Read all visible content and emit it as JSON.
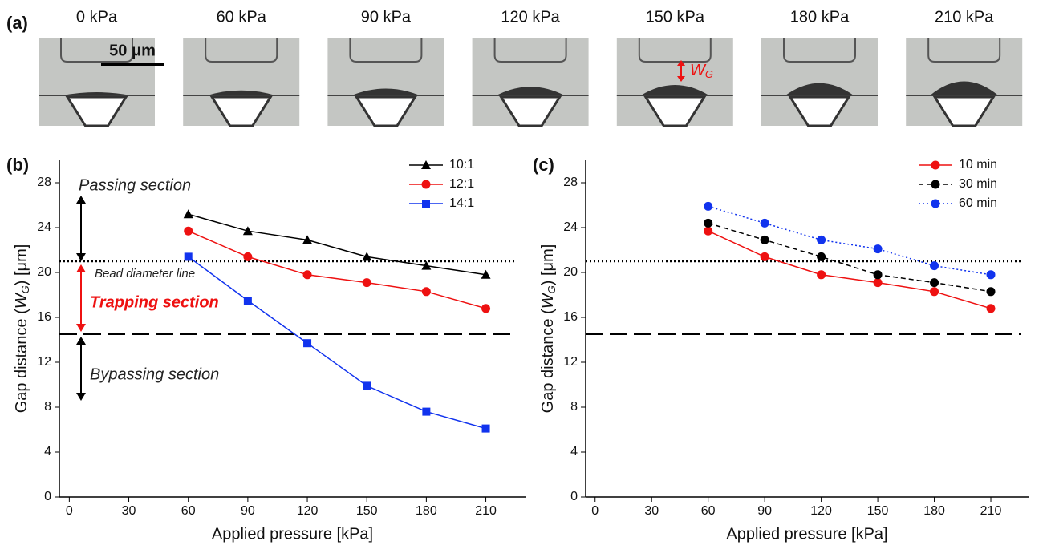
{
  "panel_a": {
    "label": "(a)",
    "pressures": [
      "0 kPa",
      "60 kPa",
      "90 kPa",
      "120 kPa",
      "150 kPa",
      "180 kPa",
      "210 kPa"
    ],
    "scale_bar": "50 μm",
    "annotation": {
      "main": "W",
      "sub": "G"
    }
  },
  "chart_data": [
    {
      "type": "line",
      "panel_label": "(b)",
      "xlabel": "Applied pressure [kPa]",
      "ylabel": {
        "before": "Gap distance (",
        "italic": "W",
        "sub": "G",
        "after": ") [μm]"
      },
      "x": [
        60,
        90,
        120,
        150,
        180,
        210
      ],
      "xlim": [
        -5,
        230
      ],
      "xticks": [
        0,
        30,
        60,
        90,
        120,
        150,
        180,
        210
      ],
      "ylim": [
        0,
        30
      ],
      "yticks": [
        0,
        4,
        8,
        12,
        16,
        20,
        24,
        28
      ],
      "hlines": [
        {
          "value": 21,
          "style": "dotted"
        },
        {
          "value": 14.5,
          "style": "dashed"
        }
      ],
      "annotations": [
        "Passing section",
        "Bead diameter line",
        "Trapping section",
        "Bypassing section"
      ],
      "series": [
        {
          "name": "10:1",
          "color": "#000000",
          "marker": "triangle",
          "dash": "solid",
          "values": [
            25.2,
            23.7,
            22.9,
            21.4,
            20.6,
            19.8
          ]
        },
        {
          "name": "12:1",
          "color": "#ee1111",
          "marker": "circle",
          "dash": "solid",
          "values": [
            23.7,
            21.4,
            19.8,
            19.1,
            18.3,
            16.8
          ]
        },
        {
          "name": "14:1",
          "color": "#1133ee",
          "marker": "square",
          "dash": "solid",
          "values": [
            21.4,
            17.5,
            13.7,
            9.9,
            7.6,
            6.1
          ]
        }
      ]
    },
    {
      "type": "line",
      "panel_label": "(c)",
      "xlabel": "Applied pressure [kPa]",
      "ylabel": {
        "before": "Gap distance (",
        "italic": "W",
        "sub": "G",
        "after": ") [μm]"
      },
      "x": [
        60,
        90,
        120,
        150,
        180,
        210
      ],
      "xlim": [
        -5,
        230
      ],
      "xticks": [
        0,
        30,
        60,
        90,
        120,
        150,
        180,
        210
      ],
      "ylim": [
        0,
        30
      ],
      "yticks": [
        0,
        4,
        8,
        12,
        16,
        20,
        24,
        28
      ],
      "hlines": [
        {
          "value": 21,
          "style": "dotted"
        },
        {
          "value": 14.5,
          "style": "dashed"
        }
      ],
      "series": [
        {
          "name": "10 min",
          "color": "#ee1111",
          "marker": "circle",
          "dash": "solid",
          "values": [
            23.7,
            21.4,
            19.8,
            19.1,
            18.3,
            16.8
          ]
        },
        {
          "name": "30 min",
          "color": "#000000",
          "marker": "circle",
          "dash": "dashed",
          "values": [
            24.4,
            22.9,
            21.4,
            19.8,
            19.1,
            18.3
          ]
        },
        {
          "name": "60 min",
          "color": "#1133ee",
          "marker": "circle",
          "dash": "dotted",
          "values": [
            25.9,
            24.4,
            22.9,
            22.1,
            20.6,
            19.8
          ]
        }
      ]
    }
  ]
}
